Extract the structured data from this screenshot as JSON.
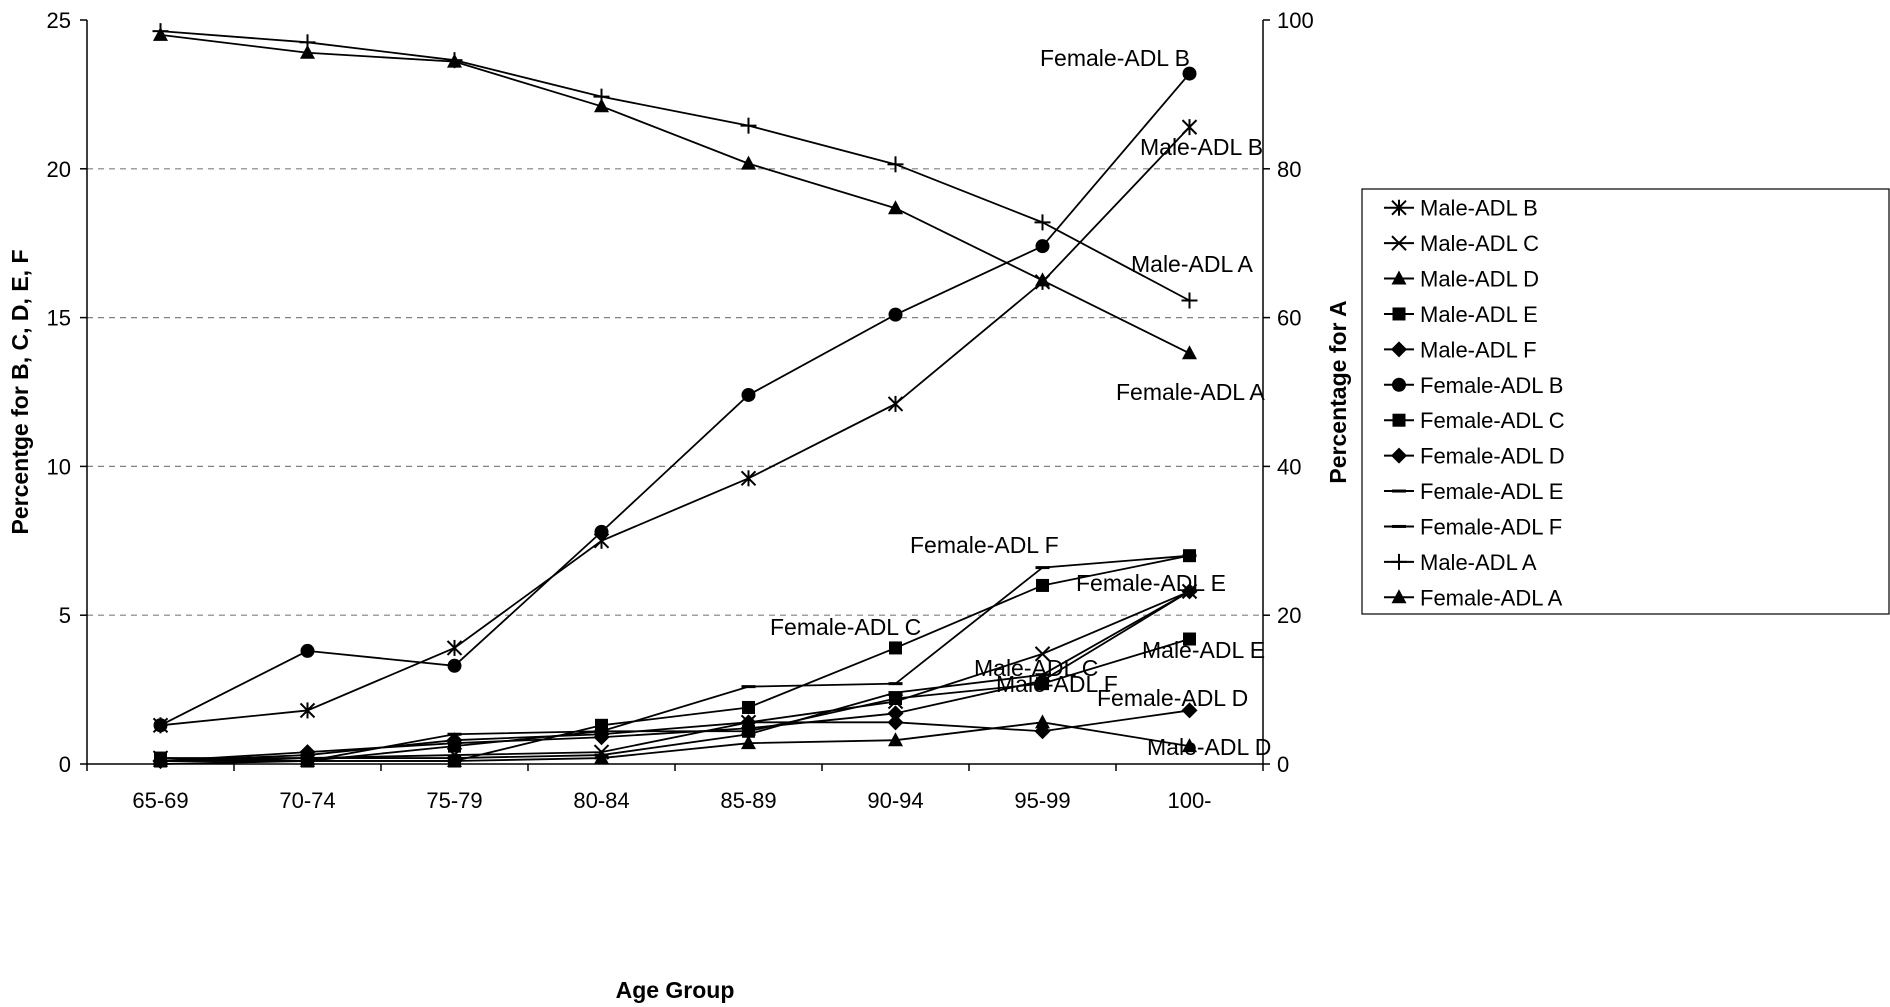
{
  "chart_data": {
    "type": "line",
    "xlabel": "Age Group",
    "ylabel_left": "Percentge for B, C, D, E, F",
    "ylabel_right": "Percentage for A",
    "categories": [
      "65-69",
      "70-74",
      "75-79",
      "80-84",
      "85-89",
      "90-94",
      "95-99",
      "100-"
    ],
    "ylim_left": [
      0,
      25
    ],
    "ylim_right": [
      0,
      100
    ],
    "yticks_left": [
      "0",
      "5",
      "10",
      "15",
      "20",
      "25"
    ],
    "yticks_right": [
      "0",
      "20",
      "40",
      "60",
      "80",
      "100"
    ],
    "grid": "horizontal dashed",
    "legend_position": "right",
    "series": [
      {
        "name": "Male-ADL B",
        "axis": "left",
        "marker": "asterisk",
        "values": [
          1.3,
          1.8,
          3.9,
          7.5,
          9.6,
          12.1,
          16.2,
          21.4
        ]
      },
      {
        "name": "Male-ADL C",
        "axis": "left",
        "marker": "x",
        "values": [
          0.2,
          0.2,
          0.3,
          0.4,
          1.4,
          2.1,
          3.7,
          5.8
        ]
      },
      {
        "name": "Male-ADL D",
        "axis": "left",
        "marker": "triangle",
        "values": [
          0.1,
          0.1,
          0.1,
          0.2,
          0.7,
          0.8,
          1.4,
          0.6
        ]
      },
      {
        "name": "Male-ADL E",
        "axis": "left",
        "marker": "square",
        "values": [
          0.1,
          0.1,
          0.6,
          1.1,
          1.1,
          2.2,
          2.7,
          4.2
        ]
      },
      {
        "name": "Male-ADL F",
        "axis": "left",
        "marker": "diamond",
        "values": [
          0.1,
          0.4,
          0.7,
          0.9,
          1.2,
          1.7,
          2.8,
          5.8
        ]
      },
      {
        "name": "Female-ADL B",
        "axis": "left",
        "marker": "circle",
        "values": [
          1.3,
          3.8,
          3.3,
          7.8,
          12.4,
          15.1,
          17.4,
          23.2
        ]
      },
      {
        "name": "Female-ADL C",
        "axis": "left",
        "marker": "square",
        "values": [
          0.2,
          0.1,
          0.1,
          1.3,
          1.9,
          3.9,
          6.0,
          7.0
        ]
      },
      {
        "name": "Female-ADL D",
        "axis": "left",
        "marker": "diamond",
        "values": [
          0.1,
          0.3,
          0.8,
          1.0,
          1.4,
          1.4,
          1.1,
          1.8
        ]
      },
      {
        "name": "Female-ADL E",
        "axis": "left",
        "marker": "dash",
        "values": [
          0.1,
          0.2,
          0.2,
          0.3,
          1.0,
          2.4,
          3.0,
          5.8
        ]
      },
      {
        "name": "Female-ADL F",
        "axis": "left",
        "marker": "dash",
        "values": [
          0.0,
          0.1,
          1.0,
          1.1,
          2.6,
          2.7,
          6.6,
          7.0
        ]
      },
      {
        "name": "Male-ADL A",
        "axis": "right",
        "marker": "plus",
        "values": [
          98.5,
          97.0,
          94.6,
          89.7,
          85.8,
          80.6,
          72.8,
          62.3
        ]
      },
      {
        "name": "Female-ADL A",
        "axis": "right",
        "marker": "triangle",
        "values": [
          98.0,
          95.6,
          94.4,
          88.4,
          80.7,
          74.7,
          65.0,
          55.2
        ]
      }
    ],
    "annotations": [
      {
        "text": "Female-ADL B",
        "series": "Female-ADL B"
      },
      {
        "text": "Male-ADL B",
        "series": "Male-ADL B"
      },
      {
        "text": "Male-ADL A",
        "series": "Male-ADL A"
      },
      {
        "text": "Female-ADL A",
        "series": "Female-ADL A"
      },
      {
        "text": "Female-ADL F",
        "series": "Female-ADL F"
      },
      {
        "text": "Female-ADL E",
        "series": "Female-ADL E"
      },
      {
        "text": "Female-ADL C",
        "series": "Female-ADL C"
      },
      {
        "text": "Male-ADL C",
        "series": "Male-ADL C"
      },
      {
        "text": "Male-ADL E",
        "series": "Male-ADL E"
      },
      {
        "text": "Male-ADL F",
        "series": "Male-ADL F"
      },
      {
        "text": "Female-ADL D",
        "series": "Female-ADL D"
      },
      {
        "text": "Male-ADL D",
        "series": "Male-ADL D"
      }
    ],
    "legend_order": [
      "Male-ADL B",
      "Male-ADL C",
      "Male-ADL D",
      "Male-ADL E",
      "Male-ADL F",
      "Female-ADL B",
      "Female-ADL C",
      "Female-ADL D",
      "Female-ADL E",
      "Female-ADL F",
      "Male-ADL A",
      "Female-ADL A"
    ]
  }
}
